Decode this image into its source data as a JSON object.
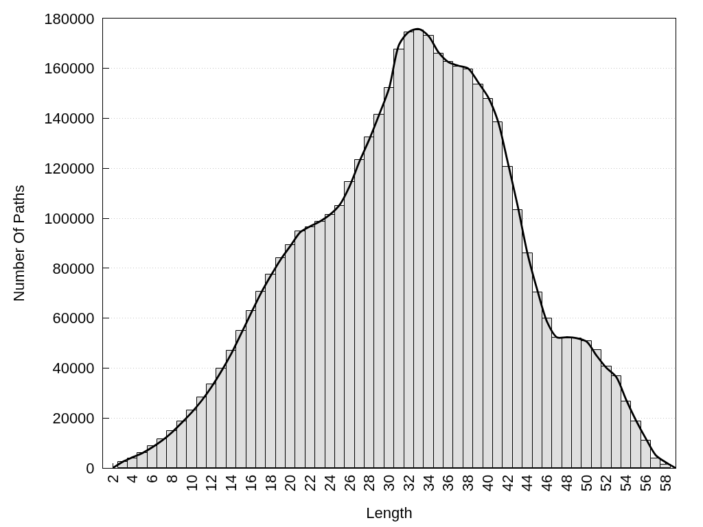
{
  "chart_data": {
    "type": "bar",
    "xlabel": "Length",
    "ylabel": "Number Of Paths",
    "xlim": [
      1,
      59
    ],
    "xticks": [
      2,
      4,
      6,
      8,
      10,
      12,
      14,
      16,
      18,
      20,
      22,
      24,
      26,
      28,
      30,
      32,
      34,
      36,
      38,
      40,
      42,
      44,
      46,
      48,
      50,
      52,
      54,
      56,
      58
    ],
    "ylim": [
      0,
      180000
    ],
    "yticks": [
      0,
      20000,
      40000,
      60000,
      80000,
      100000,
      120000,
      140000,
      160000,
      180000
    ],
    "grid": "y",
    "series": [
      {
        "color": "#dfdfdf",
        "x": [
          3,
          4,
          5,
          6,
          7,
          8,
          9,
          10,
          11,
          12,
          13,
          14,
          15,
          16,
          17,
          18,
          19,
          20,
          21,
          22,
          23,
          24,
          25,
          26,
          27,
          28,
          29,
          30,
          31,
          32,
          33,
          34,
          35,
          36,
          37,
          38,
          39,
          40,
          41,
          42,
          43,
          44,
          45,
          46,
          47,
          48,
          49,
          50,
          51,
          52,
          53,
          54,
          55,
          56,
          57,
          58
        ],
        "values": [
          2500,
          3900,
          6100,
          8800,
          11600,
          14900,
          18700,
          23200,
          28200,
          33600,
          39900,
          47000,
          55000,
          63000,
          70700,
          77500,
          84100,
          89300,
          94800,
          96400,
          98700,
          101400,
          104900,
          114600,
          123400,
          132500,
          141500,
          152300,
          167600,
          174400,
          175400,
          173000,
          165900,
          162600,
          160900,
          159800,
          153500,
          147900,
          138400,
          120600,
          103400,
          85900,
          70400,
          59900,
          52300,
          52000,
          52000,
          50900,
          47300,
          40700,
          36900,
          26700,
          18700,
          11000,
          3900,
          1400
        ]
      },
      {
        "type": "line",
        "color": "#000000",
        "x": [
          2,
          3,
          4,
          5,
          6,
          7,
          8,
          9,
          10,
          11,
          12,
          13,
          14,
          15,
          16,
          17,
          18,
          19,
          20,
          21,
          22,
          23,
          24,
          25,
          26,
          27,
          28,
          29,
          30,
          31,
          32,
          33,
          34,
          35,
          36,
          37,
          38,
          39,
          40,
          41,
          42,
          43,
          44,
          45,
          46,
          47,
          48,
          49,
          50,
          51,
          52,
          53,
          54,
          55,
          56,
          57,
          58,
          59
        ],
        "values": [
          0,
          2500,
          4300,
          6000,
          8300,
          11000,
          14300,
          18200,
          22300,
          27000,
          32500,
          38800,
          45800,
          53800,
          62000,
          70000,
          77000,
          83500,
          89000,
          94500,
          96800,
          98800,
          101500,
          105500,
          113000,
          122900,
          131800,
          141700,
          152300,
          169600,
          174700,
          175800,
          172900,
          166400,
          162500,
          161100,
          160000,
          154500,
          148600,
          139000,
          122500,
          105100,
          85900,
          71200,
          58400,
          52300,
          52400,
          52000,
          50600,
          45000,
          40100,
          36400,
          27300,
          19000,
          11700,
          5100,
          2300,
          0
        ]
      }
    ]
  }
}
